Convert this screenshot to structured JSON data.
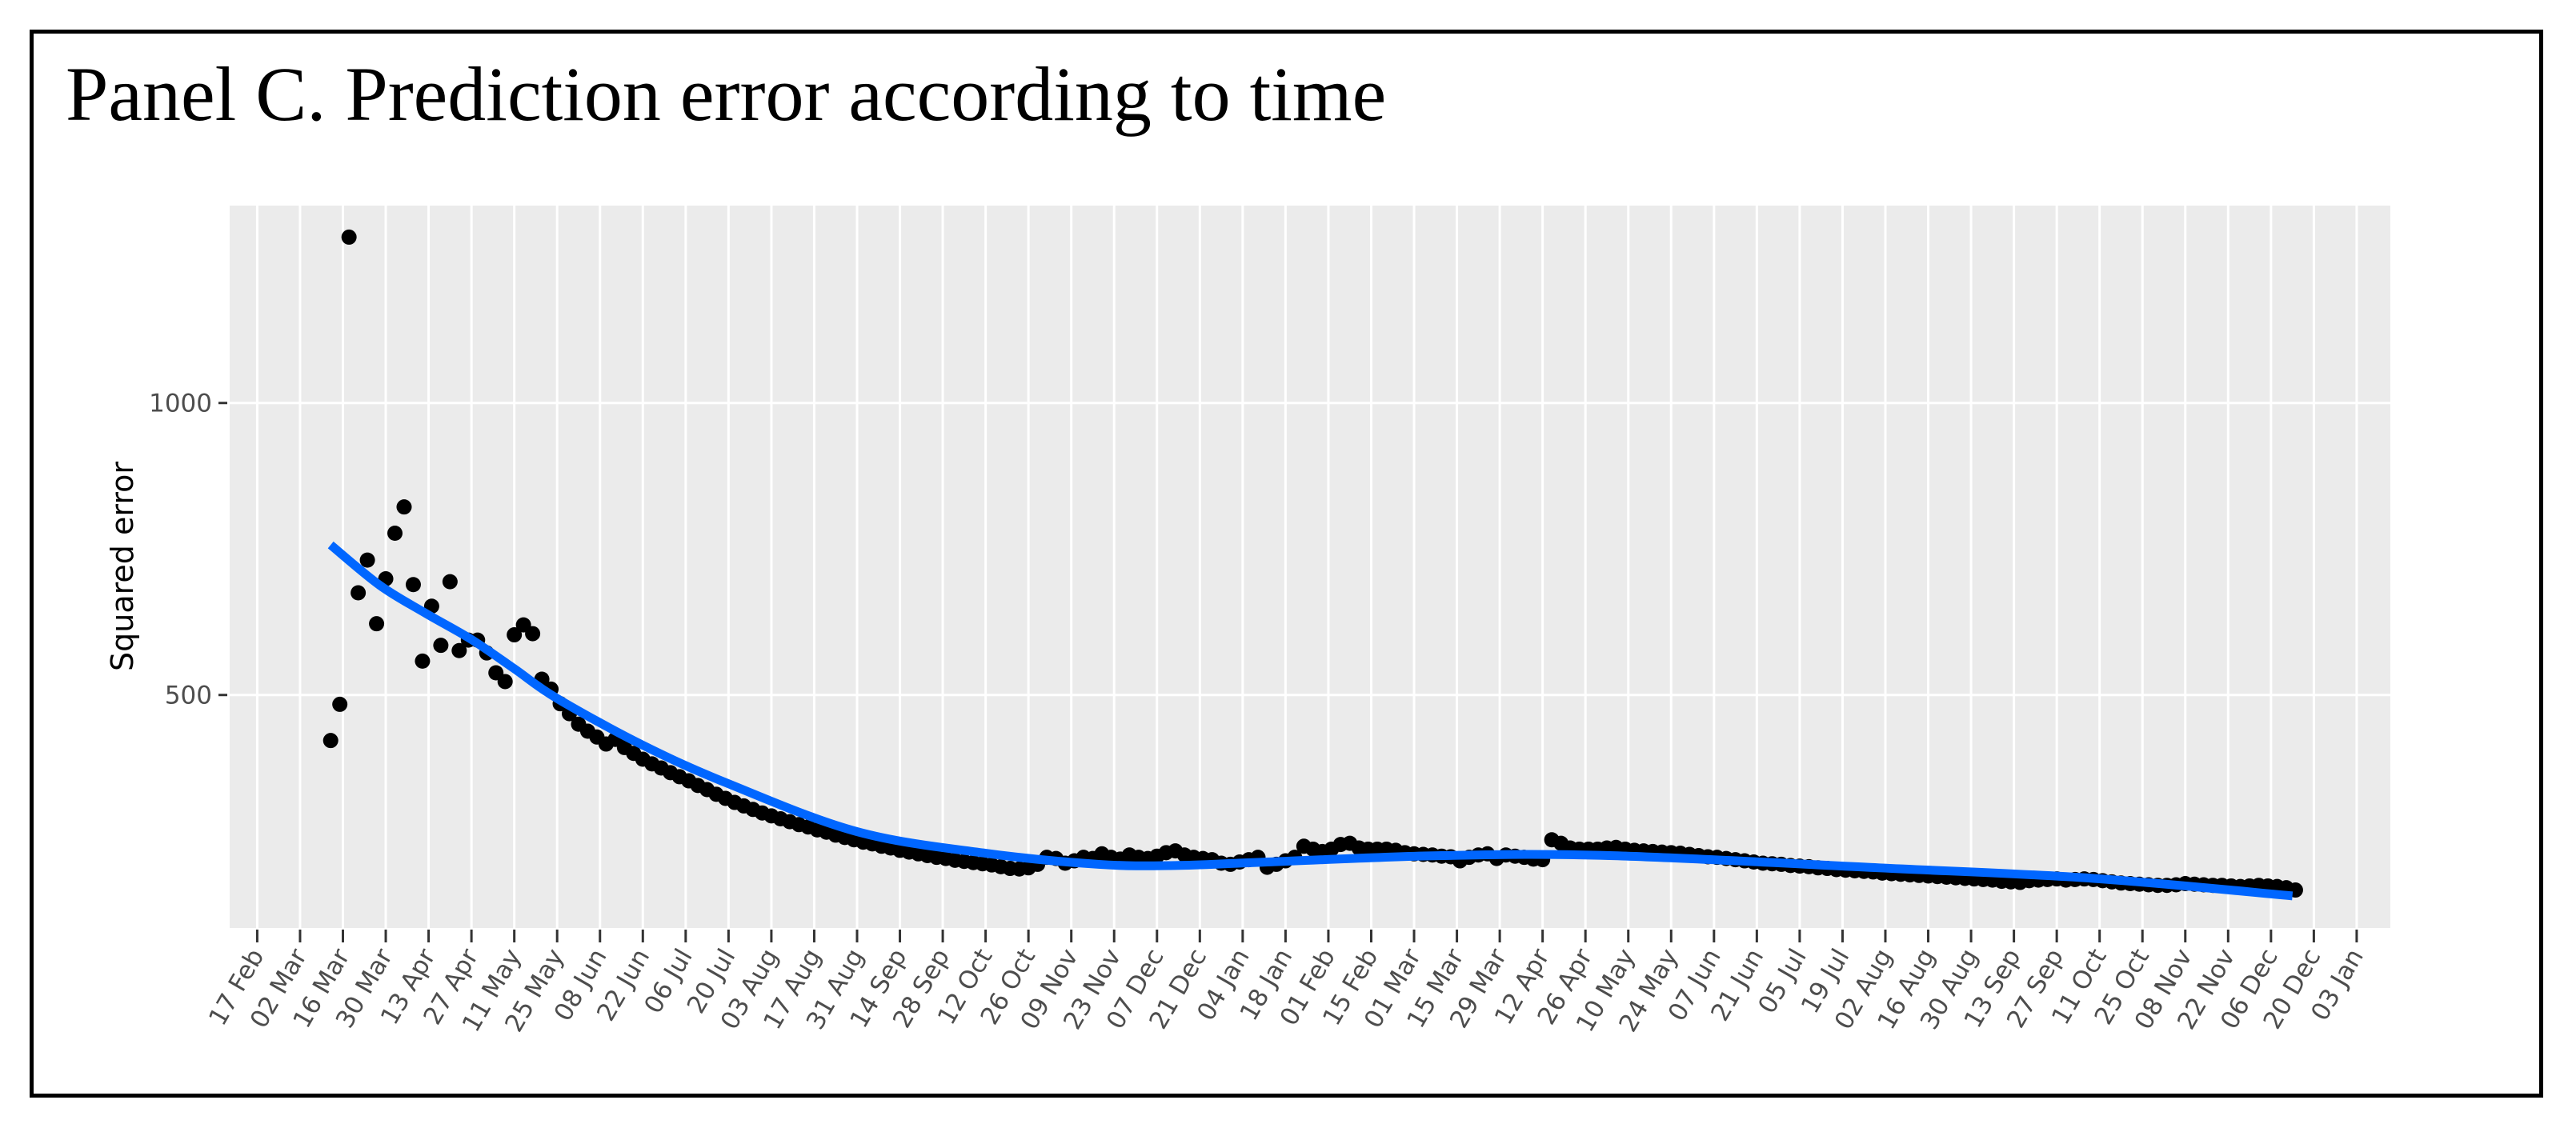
{
  "chart_data": {
    "type": "scatter",
    "title": "Panel C. Prediction error according to time",
    "xlabel": "",
    "ylabel": "Squared error",
    "xlim": [
      "2020-02-08",
      "2022-01-14"
    ],
    "ylim": [
      101,
      1338
    ],
    "grid": true,
    "x_ticks": [
      "17 Feb",
      "02 Mar",
      "16 Mar",
      "30 Mar",
      "13 Apr",
      "27 Apr",
      "11 May",
      "25 May",
      "08 Jun",
      "22 Jun",
      "06 Jul",
      "20 Jul",
      "03 Aug",
      "17 Aug",
      "31 Aug",
      "14 Sep",
      "28 Sep",
      "12 Oct",
      "26 Oct",
      "09 Nov",
      "23 Nov",
      "07 Dec",
      "21 Dec",
      "04 Jan",
      "18 Jan",
      "01 Feb",
      "15 Feb",
      "01 Mar",
      "15 Mar",
      "29 Mar",
      "12 Apr",
      "26 Apr",
      "10 May",
      "24 May",
      "07 Jun",
      "21 Jun",
      "05 Jul",
      "19 Jul",
      "02 Aug",
      "16 Aug",
      "30 Aug",
      "13 Sep",
      "27 Sep",
      "11 Oct",
      "25 Oct",
      "08 Nov",
      "22 Nov",
      "06 Dec",
      "20 Dec",
      "03 Jan"
    ],
    "x_tick_dates": [
      "2020-02-17",
      "2020-03-02",
      "2020-03-16",
      "2020-03-30",
      "2020-04-13",
      "2020-04-27",
      "2020-05-11",
      "2020-05-25",
      "2020-06-08",
      "2020-06-22",
      "2020-07-06",
      "2020-07-20",
      "2020-08-03",
      "2020-08-17",
      "2020-08-31",
      "2020-09-14",
      "2020-09-28",
      "2020-10-12",
      "2020-10-26",
      "2020-11-09",
      "2020-11-23",
      "2020-12-07",
      "2020-12-21",
      "2021-01-04",
      "2021-01-18",
      "2021-02-01",
      "2021-02-15",
      "2021-03-01",
      "2021-03-15",
      "2021-03-29",
      "2021-04-12",
      "2021-04-26",
      "2021-05-10",
      "2021-05-24",
      "2021-06-07",
      "2021-06-21",
      "2021-07-05",
      "2021-07-19",
      "2021-08-02",
      "2021-08-16",
      "2021-08-30",
      "2021-09-13",
      "2021-09-27",
      "2021-10-11",
      "2021-10-25",
      "2021-11-08",
      "2021-11-22",
      "2021-12-06",
      "2021-12-20",
      "2022-01-03"
    ],
    "y_ticks": [
      500,
      1000
    ],
    "colors": {
      "points": "#000000",
      "fit": "#0066ff",
      "panel": "#ebebeb",
      "grid": "#ffffff"
    },
    "points": {
      "x": [
        "2020-03-12",
        "2020-03-15",
        "2020-03-18",
        "2020-03-21",
        "2020-03-24",
        "2020-03-27",
        "2020-03-30",
        "2020-04-02",
        "2020-04-05",
        "2020-04-08",
        "2020-04-11",
        "2020-04-14",
        "2020-04-17",
        "2020-04-20",
        "2020-04-23",
        "2020-04-26",
        "2020-04-29",
        "2020-05-02",
        "2020-05-05",
        "2020-05-08",
        "2020-05-11",
        "2020-05-14",
        "2020-05-17",
        "2020-05-20",
        "2020-05-23",
        "2020-05-26",
        "2020-05-29",
        "2020-06-01",
        "2020-06-04",
        "2020-06-07",
        "2020-06-10",
        "2020-06-13",
        "2020-06-16",
        "2020-06-19",
        "2020-06-22",
        "2020-06-25",
        "2020-06-28",
        "2020-07-01",
        "2020-07-04",
        "2020-07-07",
        "2020-07-10",
        "2020-07-13",
        "2020-07-16",
        "2020-07-19",
        "2020-07-22",
        "2020-07-25",
        "2020-07-28",
        "2020-07-31",
        "2020-08-03",
        "2020-08-06",
        "2020-08-09",
        "2020-08-12",
        "2020-08-15",
        "2020-08-18",
        "2020-08-21",
        "2020-08-24",
        "2020-08-27",
        "2020-08-30",
        "2020-09-02",
        "2020-09-05",
        "2020-09-08",
        "2020-09-11",
        "2020-09-14",
        "2020-09-17",
        "2020-09-20",
        "2020-09-23",
        "2020-09-26",
        "2020-09-29",
        "2020-10-02",
        "2020-10-05",
        "2020-10-08",
        "2020-10-11",
        "2020-10-14",
        "2020-10-17",
        "2020-10-20",
        "2020-10-23",
        "2020-10-26",
        "2020-10-29",
        "2020-11-01",
        "2020-11-04",
        "2020-11-07",
        "2020-11-10",
        "2020-11-13",
        "2020-11-16",
        "2020-11-19",
        "2020-11-22",
        "2020-11-25",
        "2020-11-28",
        "2020-12-01",
        "2020-12-04",
        "2020-12-07",
        "2020-12-10",
        "2020-12-13",
        "2020-12-16",
        "2020-12-19",
        "2020-12-22",
        "2020-12-25",
        "2020-12-28",
        "2020-12-31",
        "2021-01-03",
        "2021-01-06",
        "2021-01-09",
        "2021-01-12",
        "2021-01-15",
        "2021-01-18",
        "2021-01-21",
        "2021-01-24",
        "2021-01-27",
        "2021-01-30",
        "2021-02-02",
        "2021-02-05",
        "2021-02-08",
        "2021-02-11",
        "2021-02-14",
        "2021-02-17",
        "2021-02-20",
        "2021-02-23",
        "2021-02-26",
        "2021-03-01",
        "2021-03-04",
        "2021-03-07",
        "2021-03-10",
        "2021-03-13",
        "2021-03-16",
        "2021-03-19",
        "2021-03-22",
        "2021-03-25",
        "2021-03-28",
        "2021-03-31",
        "2021-04-03",
        "2021-04-06",
        "2021-04-09",
        "2021-04-12",
        "2021-04-15",
        "2021-04-18",
        "2021-04-21",
        "2021-04-24",
        "2021-04-27",
        "2021-04-30",
        "2021-05-03",
        "2021-05-06",
        "2021-05-09",
        "2021-05-12",
        "2021-05-15",
        "2021-05-18",
        "2021-05-21",
        "2021-05-24",
        "2021-05-27",
        "2021-05-30",
        "2021-06-02",
        "2021-06-05",
        "2021-06-08",
        "2021-06-11",
        "2021-06-14",
        "2021-06-17",
        "2021-06-20",
        "2021-06-23",
        "2021-06-26",
        "2021-06-29",
        "2021-07-02",
        "2021-07-05",
        "2021-07-08",
        "2021-07-11",
        "2021-07-14",
        "2021-07-17",
        "2021-07-20",
        "2021-07-23",
        "2021-07-26",
        "2021-07-29",
        "2021-08-01",
        "2021-08-04",
        "2021-08-07",
        "2021-08-10",
        "2021-08-13",
        "2021-08-16",
        "2021-08-19",
        "2021-08-22",
        "2021-08-25",
        "2021-08-28",
        "2021-08-31",
        "2021-09-03",
        "2021-09-06",
        "2021-09-09",
        "2021-09-12",
        "2021-09-15",
        "2021-09-18",
        "2021-09-21",
        "2021-09-24",
        "2021-09-27",
        "2021-09-30",
        "2021-10-03",
        "2021-10-06",
        "2021-10-09",
        "2021-10-12",
        "2021-10-15",
        "2021-10-18",
        "2021-10-21",
        "2021-10-24",
        "2021-10-27",
        "2021-10-30",
        "2021-11-02",
        "2021-11-05",
        "2021-11-08",
        "2021-11-11",
        "2021-11-14",
        "2021-11-17",
        "2021-11-20",
        "2021-11-23",
        "2021-11-26",
        "2021-11-29",
        "2021-12-02",
        "2021-12-05",
        "2021-12-08",
        "2021-12-11",
        "2021-12-14"
      ],
      "y": [
        422,
        484,
        1284,
        675,
        731,
        622,
        699,
        777,
        822,
        689,
        558,
        652,
        585,
        694,
        576,
        594,
        594,
        572,
        538,
        523,
        603,
        620,
        605,
        527,
        510,
        485,
        468,
        450,
        438,
        428,
        416,
        424,
        410,
        400,
        390,
        382,
        375,
        367,
        360,
        353,
        345,
        338,
        330,
        323,
        316,
        310,
        304,
        298,
        293,
        288,
        283,
        278,
        274,
        269,
        265,
        260,
        256,
        252,
        248,
        245,
        241,
        238,
        234,
        231,
        228,
        225,
        222,
        220,
        217,
        215,
        213,
        211,
        209,
        206,
        203,
        202,
        204,
        210,
        222,
        220,
        212,
        216,
        222,
        220,
        228,
        222,
        219,
        226,
        222,
        220,
        224,
        230,
        233,
        226,
        222,
        220,
        218,
        212,
        210,
        214,
        218,
        222,
        205,
        210,
        216,
        222,
        241,
        236,
        232,
        236,
        244,
        246,
        238,
        236,
        236,
        236,
        234,
        230,
        228,
        227,
        226,
        224,
        223,
        216,
        222,
        226,
        228,
        220,
        226,
        224,
        222,
        219,
        218,
        252,
        246,
        238,
        236,
        236,
        236,
        238,
        239,
        236,
        234,
        233,
        232,
        231,
        230,
        229,
        227,
        225,
        223,
        222,
        220,
        218,
        216,
        214,
        212,
        211,
        210,
        208,
        207,
        206,
        204,
        203,
        201,
        200,
        199,
        198,
        197,
        195,
        194,
        193,
        192,
        191,
        190,
        189,
        188,
        187,
        186,
        185,
        184,
        183,
        181,
        180,
        179,
        182,
        183,
        184,
        185,
        183,
        184,
        185,
        184,
        182,
        180,
        178,
        177,
        176,
        175,
        174,
        174,
        175,
        177,
        176,
        175,
        174,
        174,
        173,
        172,
        173,
        174,
        173,
        172,
        170,
        166
      ]
    },
    "fit_line": {
      "x": [
        "2020-03-12",
        "2020-03-28",
        "2020-04-12",
        "2020-04-27",
        "2020-05-11",
        "2020-05-25",
        "2020-06-22",
        "2020-07-20",
        "2020-08-31",
        "2020-10-12",
        "2020-11-18",
        "2020-12-13",
        "2021-01-12",
        "2021-03-10",
        "2021-05-04",
        "2021-07-31",
        "2021-10-09",
        "2021-12-13"
      ],
      "y": [
        757,
        688,
        640,
        595,
        545,
        494,
        414,
        348,
        266,
        229,
        210,
        208,
        214,
        225,
        225,
        204,
        186,
        156
      ]
    }
  }
}
